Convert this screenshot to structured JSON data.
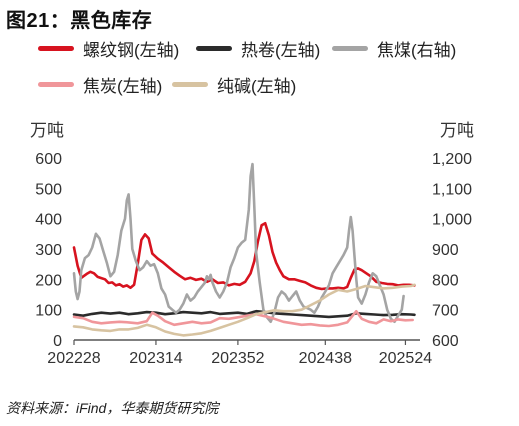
{
  "figure": {
    "title": "图21：黑色库存",
    "source": "资料来源：iFind，华泰期货研究院"
  },
  "chart_data": {
    "type": "line",
    "left_axis": {
      "unit": "万吨",
      "range": [
        0,
        600
      ],
      "ticks": [
        "0",
        "100",
        "200",
        "300",
        "400",
        "500",
        "600"
      ]
    },
    "right_axis": {
      "unit": "万吨",
      "range": [
        600,
        1200
      ],
      "ticks": [
        "600",
        "700",
        "800",
        "900",
        "1,000",
        "1,100",
        "1,200"
      ]
    },
    "x_range": [
      0,
      190
    ],
    "x_ticks": [
      {
        "pos": 0,
        "label": "202228"
      },
      {
        "pos": 45,
        "label": "202314"
      },
      {
        "pos": 90,
        "label": "202352"
      },
      {
        "pos": 138,
        "label": "202438"
      },
      {
        "pos": 182,
        "label": "202524"
      }
    ],
    "legend": [
      {
        "key": "rebar",
        "label": "螺纹钢(左轴)",
        "color": "#d7131f"
      },
      {
        "key": "hrc",
        "label": "热卷(左轴)",
        "color": "#2b2b2b"
      },
      {
        "key": "coal",
        "label": "焦煤(右轴)",
        "color": "#a4a4a4"
      },
      {
        "key": "coke",
        "label": "焦炭(左轴)",
        "color": "#f0969a"
      },
      {
        "key": "billet",
        "label": "纯碱(左轴)",
        "color": "#d7c3a1"
      }
    ],
    "series": [
      {
        "key": "rebar",
        "name": "螺纹钢(左轴)",
        "axis": "left",
        "color": "#d7131f",
        "width": 2.6,
        "points": [
          [
            0,
            305
          ],
          [
            2,
            245
          ],
          [
            4,
            205
          ],
          [
            7,
            218
          ],
          [
            9,
            225
          ],
          [
            11,
            220
          ],
          [
            13,
            208
          ],
          [
            15,
            204
          ],
          [
            17,
            200
          ],
          [
            19,
            188
          ],
          [
            21,
            190
          ],
          [
            23,
            180
          ],
          [
            25,
            184
          ],
          [
            27,
            176
          ],
          [
            29,
            180
          ],
          [
            31,
            172
          ],
          [
            33,
            182
          ],
          [
            35,
            250
          ],
          [
            37,
            330
          ],
          [
            39,
            348
          ],
          [
            41,
            335
          ],
          [
            43,
            285
          ],
          [
            46,
            268
          ],
          [
            49,
            255
          ],
          [
            52,
            240
          ],
          [
            55,
            225
          ],
          [
            58,
            212
          ],
          [
            61,
            200
          ],
          [
            64,
            205
          ],
          [
            67,
            198
          ],
          [
            70,
            202
          ],
          [
            73,
            192
          ],
          [
            76,
            200
          ],
          [
            79,
            188
          ],
          [
            82,
            190
          ],
          [
            85,
            180
          ],
          [
            88,
            185
          ],
          [
            91,
            182
          ],
          [
            94,
            192
          ],
          [
            97,
            220
          ],
          [
            99,
            260
          ],
          [
            101,
            325
          ],
          [
            103,
            378
          ],
          [
            105,
            385
          ],
          [
            107,
            345
          ],
          [
            109,
            290
          ],
          [
            111,
            255
          ],
          [
            113,
            230
          ],
          [
            115,
            210
          ],
          [
            118,
            200
          ],
          [
            121,
            200
          ],
          [
            124,
            195
          ],
          [
            127,
            190
          ],
          [
            130,
            180
          ],
          [
            133,
            172
          ],
          [
            136,
            168
          ],
          [
            139,
            170
          ],
          [
            142,
            170
          ],
          [
            145,
            172
          ],
          [
            148,
            170
          ],
          [
            150,
            175
          ],
          [
            152,
            205
          ],
          [
            154,
            232
          ],
          [
            156,
            236
          ],
          [
            158,
            230
          ],
          [
            160,
            222
          ],
          [
            163,
            210
          ],
          [
            166,
            192
          ],
          [
            169,
            188
          ],
          [
            172,
            185
          ],
          [
            175,
            184
          ],
          [
            178,
            180
          ],
          [
            181,
            182
          ],
          [
            184,
            182
          ],
          [
            187,
            180
          ]
        ]
      },
      {
        "key": "hrc",
        "name": "热卷(左轴)",
        "axis": "left",
        "color": "#2b2b2b",
        "width": 2.6,
        "points": [
          [
            0,
            84
          ],
          [
            5,
            80
          ],
          [
            10,
            86
          ],
          [
            15,
            90
          ],
          [
            20,
            87
          ],
          [
            25,
            90
          ],
          [
            30,
            85
          ],
          [
            35,
            88
          ],
          [
            40,
            92
          ],
          [
            45,
            90
          ],
          [
            50,
            85
          ],
          [
            55,
            88
          ],
          [
            60,
            92
          ],
          [
            65,
            90
          ],
          [
            70,
            88
          ],
          [
            75,
            92
          ],
          [
            80,
            86
          ],
          [
            85,
            88
          ],
          [
            90,
            90
          ],
          [
            95,
            86
          ],
          [
            100,
            95
          ],
          [
            105,
            92
          ],
          [
            110,
            88
          ],
          [
            115,
            86
          ],
          [
            120,
            84
          ],
          [
            125,
            82
          ],
          [
            130,
            80
          ],
          [
            135,
            78
          ],
          [
            140,
            76
          ],
          [
            145,
            78
          ],
          [
            150,
            80
          ],
          [
            155,
            88
          ],
          [
            160,
            86
          ],
          [
            165,
            84
          ],
          [
            170,
            82
          ],
          [
            175,
            83
          ],
          [
            180,
            85
          ],
          [
            185,
            84
          ],
          [
            187,
            83
          ]
        ]
      },
      {
        "key": "coal",
        "name": "焦煤(右轴)",
        "axis": "right",
        "color": "#a4a4a4",
        "width": 2.6,
        "points": [
          [
            0,
            820
          ],
          [
            1,
            760
          ],
          [
            2,
            735
          ],
          [
            3,
            760
          ],
          [
            4,
            830
          ],
          [
            6,
            870
          ],
          [
            8,
            880
          ],
          [
            10,
            905
          ],
          [
            12,
            950
          ],
          [
            14,
            935
          ],
          [
            16,
            895
          ],
          [
            18,
            855
          ],
          [
            20,
            810
          ],
          [
            22,
            825
          ],
          [
            24,
            880
          ],
          [
            26,
            960
          ],
          [
            28,
            1000
          ],
          [
            29,
            1060
          ],
          [
            30,
            1080
          ],
          [
            31,
            1000
          ],
          [
            32,
            900
          ],
          [
            34,
            860
          ],
          [
            36,
            830
          ],
          [
            38,
            840
          ],
          [
            40,
            860
          ],
          [
            42,
            845
          ],
          [
            44,
            850
          ],
          [
            46,
            820
          ],
          [
            48,
            770
          ],
          [
            50,
            750
          ],
          [
            52,
            710
          ],
          [
            54,
            700
          ],
          [
            56,
            690
          ],
          [
            58,
            700
          ],
          [
            60,
            720
          ],
          [
            62,
            750
          ],
          [
            64,
            730
          ],
          [
            66,
            740
          ],
          [
            68,
            760
          ],
          [
            70,
            775
          ],
          [
            72,
            790
          ],
          [
            73,
            810
          ],
          [
            74,
            800
          ],
          [
            75,
            815
          ],
          [
            76,
            790
          ],
          [
            78,
            760
          ],
          [
            80,
            740
          ],
          [
            82,
            760
          ],
          [
            84,
            790
          ],
          [
            86,
            840
          ],
          [
            88,
            870
          ],
          [
            90,
            905
          ],
          [
            92,
            920
          ],
          [
            94,
            930
          ],
          [
            96,
            1030
          ],
          [
            97,
            1140
          ],
          [
            98,
            1180
          ],
          [
            99,
            1040
          ],
          [
            100,
            890
          ],
          [
            102,
            790
          ],
          [
            104,
            700
          ],
          [
            106,
            675
          ],
          [
            108,
            660
          ],
          [
            110,
            690
          ],
          [
            112,
            740
          ],
          [
            114,
            760
          ],
          [
            116,
            750
          ],
          [
            118,
            730
          ],
          [
            120,
            745
          ],
          [
            122,
            760
          ],
          [
            124,
            730
          ],
          [
            126,
            710
          ],
          [
            128,
            705
          ],
          [
            130,
            700
          ],
          [
            132,
            690
          ],
          [
            134,
            710
          ],
          [
            136,
            740
          ],
          [
            138,
            760
          ],
          [
            140,
            780
          ],
          [
            142,
            820
          ],
          [
            144,
            840
          ],
          [
            146,
            860
          ],
          [
            148,
            880
          ],
          [
            150,
            905
          ],
          [
            151,
            960
          ],
          [
            152,
            1005
          ],
          [
            153,
            960
          ],
          [
            154,
            880
          ],
          [
            155,
            800
          ],
          [
            156,
            740
          ],
          [
            158,
            720
          ],
          [
            160,
            750
          ],
          [
            162,
            790
          ],
          [
            164,
            820
          ],
          [
            166,
            810
          ],
          [
            168,
            780
          ],
          [
            170,
            750
          ],
          [
            172,
            700
          ],
          [
            174,
            670
          ],
          [
            176,
            660
          ],
          [
            178,
            680
          ],
          [
            180,
            700
          ],
          [
            181,
            745
          ]
        ]
      },
      {
        "key": "coke",
        "name": "焦炭(左轴)",
        "axis": "left",
        "color": "#f0969a",
        "width": 2.6,
        "points": [
          [
            0,
            76
          ],
          [
            5,
            72
          ],
          [
            10,
            60
          ],
          [
            15,
            55
          ],
          [
            20,
            58
          ],
          [
            25,
            60
          ],
          [
            30,
            58
          ],
          [
            35,
            55
          ],
          [
            40,
            62
          ],
          [
            43,
            90
          ],
          [
            46,
            80
          ],
          [
            50,
            62
          ],
          [
            55,
            50
          ],
          [
            60,
            55
          ],
          [
            65,
            60
          ],
          [
            70,
            55
          ],
          [
            75,
            58
          ],
          [
            80,
            72
          ],
          [
            85,
            70
          ],
          [
            90,
            75
          ],
          [
            95,
            80
          ],
          [
            100,
            85
          ],
          [
            105,
            78
          ],
          [
            110,
            70
          ],
          [
            115,
            60
          ],
          [
            120,
            55
          ],
          [
            125,
            50
          ],
          [
            130,
            52
          ],
          [
            135,
            48
          ],
          [
            140,
            46
          ],
          [
            145,
            50
          ],
          [
            150,
            58
          ],
          [
            153,
            80
          ],
          [
            155,
            95
          ],
          [
            158,
            70
          ],
          [
            162,
            60
          ],
          [
            166,
            55
          ],
          [
            170,
            68
          ],
          [
            174,
            62
          ],
          [
            178,
            68
          ],
          [
            182,
            65
          ],
          [
            186,
            66
          ]
        ]
      },
      {
        "key": "billet",
        "name": "纯碱(左轴)",
        "axis": "left",
        "color": "#d7c3a1",
        "width": 2.6,
        "points": [
          [
            0,
            45
          ],
          [
            5,
            42
          ],
          [
            10,
            35
          ],
          [
            15,
            32
          ],
          [
            20,
            30
          ],
          [
            25,
            35
          ],
          [
            30,
            35
          ],
          [
            35,
            40
          ],
          [
            40,
            50
          ],
          [
            45,
            42
          ],
          [
            50,
            28
          ],
          [
            55,
            20
          ],
          [
            60,
            15
          ],
          [
            65,
            18
          ],
          [
            70,
            22
          ],
          [
            75,
            30
          ],
          [
            80,
            40
          ],
          [
            85,
            50
          ],
          [
            90,
            60
          ],
          [
            95,
            72
          ],
          [
            100,
            85
          ],
          [
            105,
            92
          ],
          [
            110,
            98
          ],
          [
            115,
            95
          ],
          [
            120,
            95
          ],
          [
            125,
            100
          ],
          [
            130,
            115
          ],
          [
            135,
            130
          ],
          [
            140,
            150
          ],
          [
            145,
            165
          ],
          [
            150,
            160
          ],
          [
            155,
            168
          ],
          [
            160,
            178
          ],
          [
            165,
            174
          ],
          [
            170,
            170
          ],
          [
            175,
            172
          ],
          [
            180,
            176
          ],
          [
            185,
            178
          ],
          [
            187,
            182
          ]
        ]
      }
    ]
  }
}
